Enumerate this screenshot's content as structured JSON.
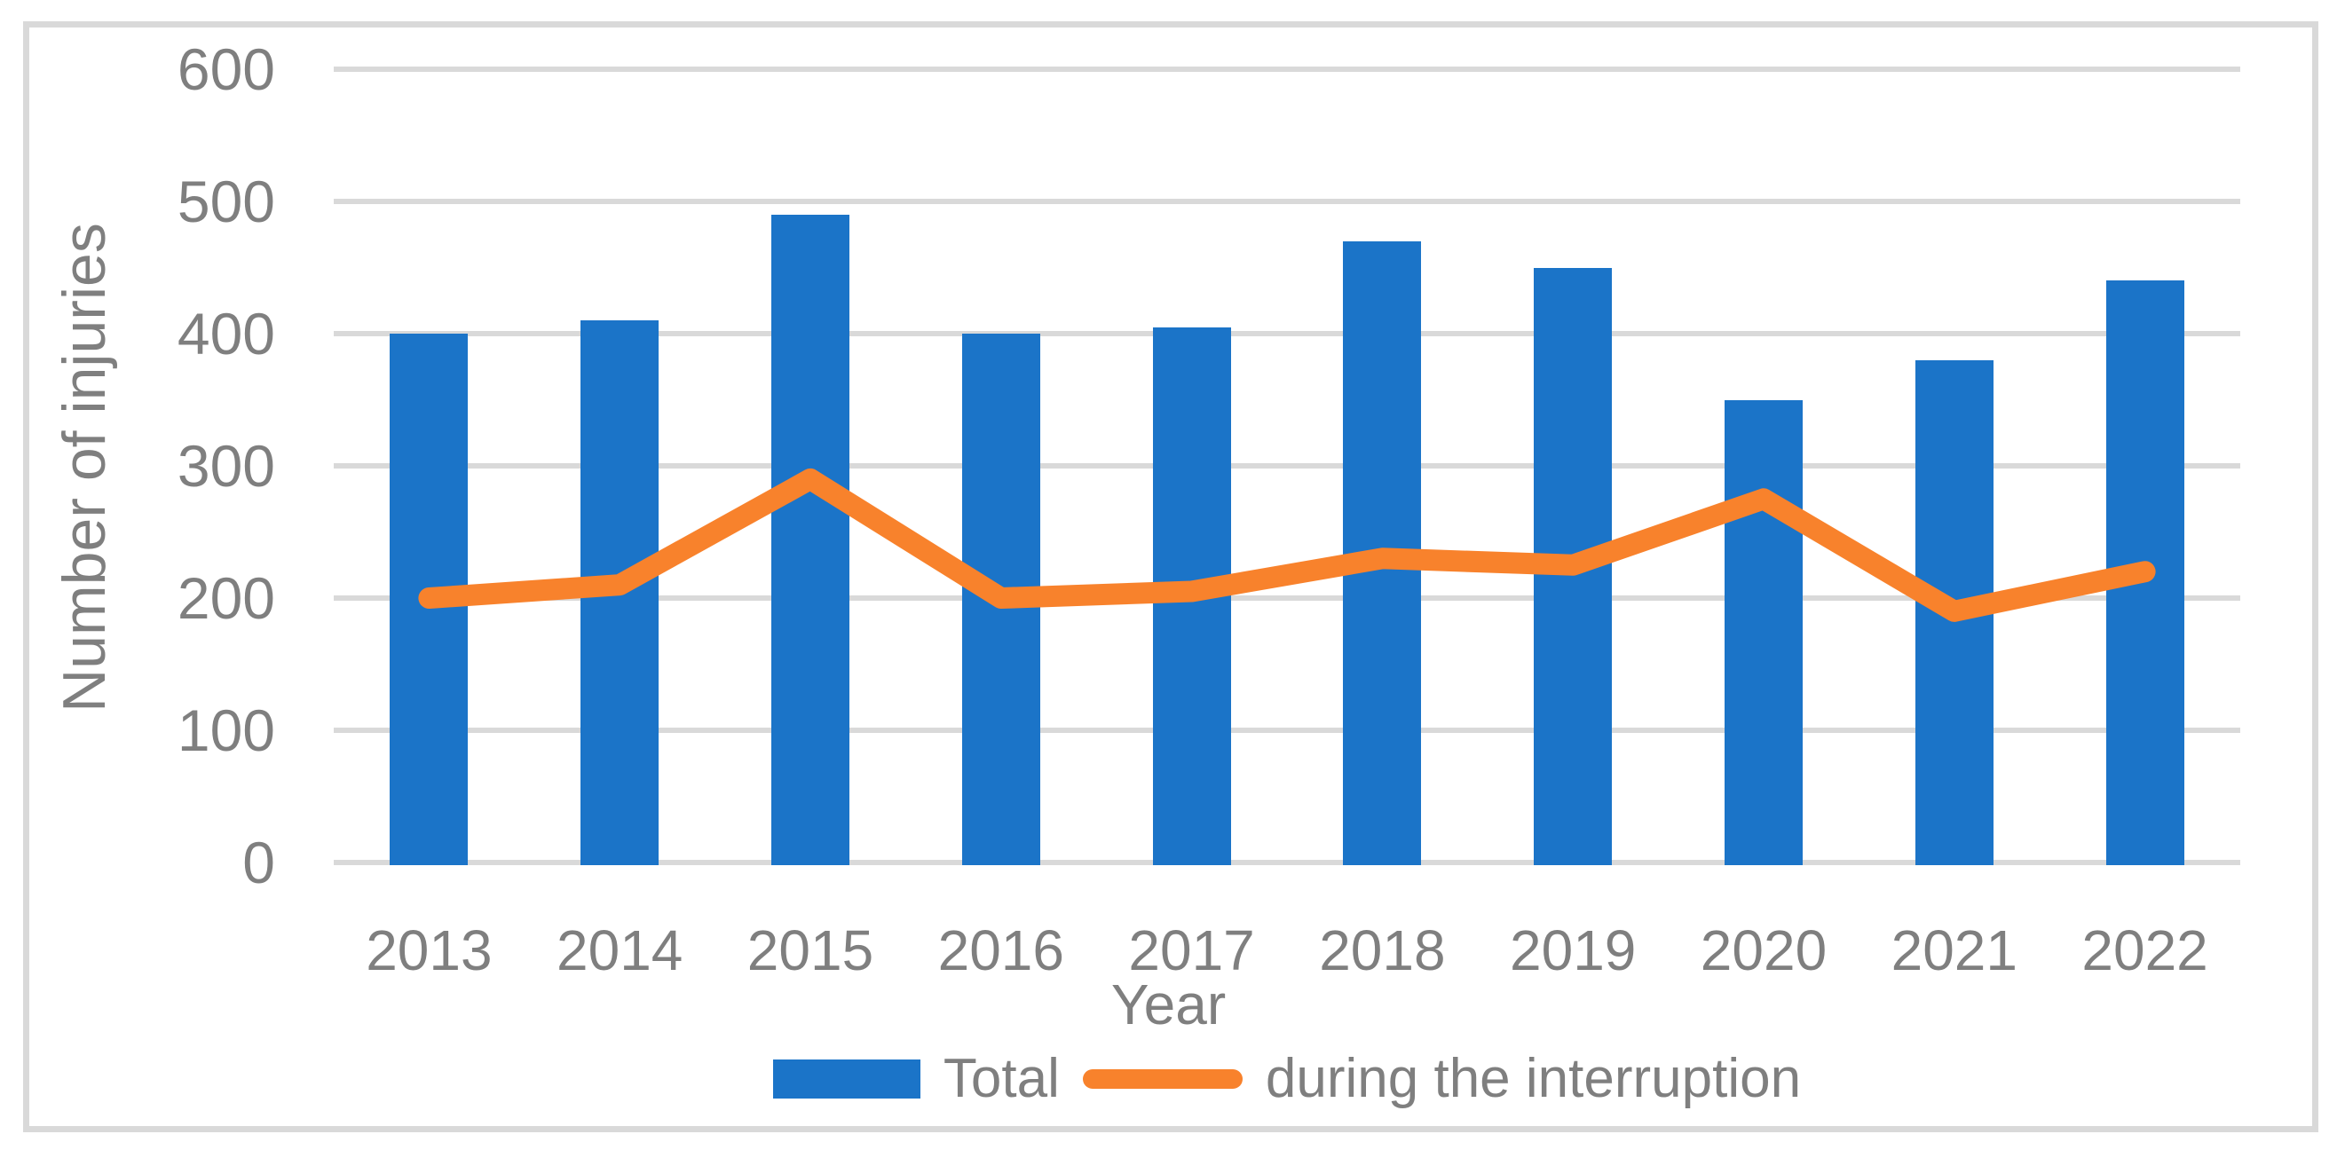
{
  "chart_data": {
    "type": "bar+line",
    "title": "",
    "categories": [
      "2013",
      "2014",
      "2015",
      "2016",
      "2017",
      "2018",
      "2019",
      "2020",
      "2021",
      "2022"
    ],
    "series": [
      {
        "name": "Total",
        "type": "bar",
        "color": "#1B74C8",
        "values": [
          400,
          410,
          490,
          400,
          405,
          470,
          450,
          350,
          380,
          440
        ]
      },
      {
        "name": "during the interruption",
        "type": "line",
        "color": "#F8822C",
        "values": [
          200,
          210,
          290,
          200,
          205,
          230,
          225,
          275,
          190,
          220
        ]
      }
    ],
    "xlabel": "Year",
    "ylabel": "Number of injuries",
    "ylim": [
      0,
      600
    ],
    "yticks": [
      0,
      100,
      200,
      300,
      400,
      500,
      600
    ],
    "grid": "horizontal",
    "gridline_color": "#D9D9D9",
    "outer_border_color": "#D9D9D9",
    "axis_text_color": "#7F7F7F",
    "legend_position": "bottom-center"
  }
}
